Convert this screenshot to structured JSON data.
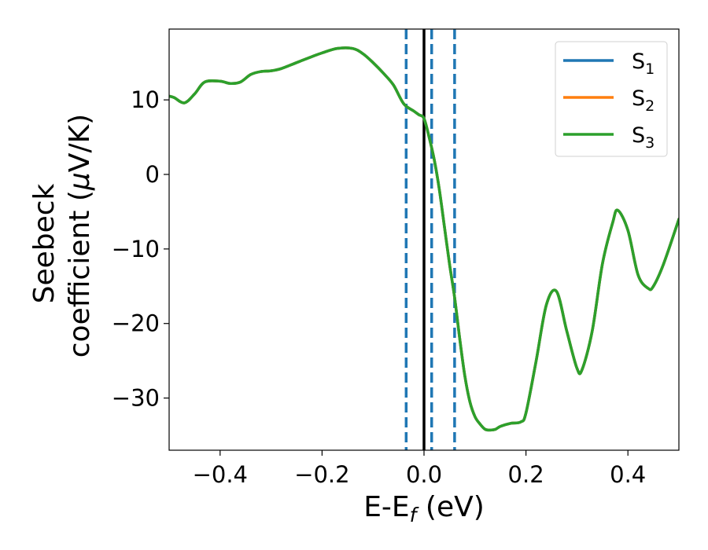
{
  "chart_data": {
    "type": "line",
    "xlabel": {
      "main": "E-E",
      "subscript": "f",
      "suffix": " (eV)"
    },
    "ylabel": {
      "line1": "Seebeck",
      "line2_prefix": "coefficient  (",
      "line2_greek": "μ",
      "line2_suffix": "V/K)"
    },
    "xlim": [
      -0.5,
      0.5
    ],
    "ylim": [
      -37,
      19.5
    ],
    "xticks": [
      -0.4,
      -0.2,
      0.0,
      0.2,
      0.4
    ],
    "xtick_labels": [
      "−0.4",
      "−0.2",
      "0.0",
      "0.2",
      "0.4"
    ],
    "yticks": [
      10,
      0,
      -10,
      -20,
      -30
    ],
    "ytick_labels": [
      "10",
      "0",
      "−10",
      "−20",
      "−30"
    ],
    "grid": false,
    "legend_position": "top-right",
    "series": [
      {
        "name": "S",
        "subscript": "1",
        "color": "#1f77b4"
      },
      {
        "name": "S",
        "subscript": "2",
        "color": "#ff7f0e"
      },
      {
        "name": "S",
        "subscript": "3",
        "color": "#2ca02c"
      }
    ],
    "curve": {
      "x": [
        -0.5,
        -0.49,
        -0.47,
        -0.45,
        -0.43,
        -0.4,
        -0.38,
        -0.36,
        -0.34,
        -0.32,
        -0.3,
        -0.28,
        -0.25,
        -0.22,
        -0.2,
        -0.17,
        -0.14,
        -0.12,
        -0.1,
        -0.08,
        -0.06,
        -0.04,
        -0.02,
        -0.01,
        0.0,
        0.01,
        0.02,
        0.03,
        0.04,
        0.05,
        0.06,
        0.07,
        0.08,
        0.09,
        0.1,
        0.11,
        0.12,
        0.13,
        0.14,
        0.15,
        0.17,
        0.19,
        0.2,
        0.22,
        0.24,
        0.26,
        0.28,
        0.3,
        0.31,
        0.33,
        0.35,
        0.37,
        0.38,
        0.4,
        0.42,
        0.44,
        0.45,
        0.47,
        0.5
      ],
      "y": [
        10.5,
        10.3,
        9.6,
        10.8,
        12.4,
        12.5,
        12.2,
        12.4,
        13.4,
        13.8,
        13.9,
        14.2,
        15.0,
        15.8,
        16.3,
        16.9,
        16.9,
        16.2,
        15.0,
        13.6,
        12.0,
        9.5,
        8.5,
        8.0,
        7.5,
        5.0,
        2.0,
        -2.0,
        -7.0,
        -12.0,
        -16.5,
        -22.0,
        -27.0,
        -30.5,
        -32.5,
        -33.5,
        -34.2,
        -34.3,
        -34.2,
        -33.8,
        -33.4,
        -33.2,
        -32.0,
        -25.0,
        -17.5,
        -15.7,
        -21.0,
        -26.0,
        -26.2,
        -21.0,
        -12.0,
        -6.5,
        -4.8,
        -7.5,
        -13.5,
        -15.3,
        -15.0,
        -12.0,
        -6.0
      ]
    },
    "vlines": [
      {
        "x": -0.035,
        "style": "dashed",
        "color": "#1f77b4"
      },
      {
        "x": 0.0,
        "style": "solid",
        "color": "#000000"
      },
      {
        "x": 0.015,
        "style": "dashed",
        "color": "#1f77b4"
      },
      {
        "x": 0.06,
        "style": "dashed",
        "color": "#1f77b4"
      }
    ]
  }
}
